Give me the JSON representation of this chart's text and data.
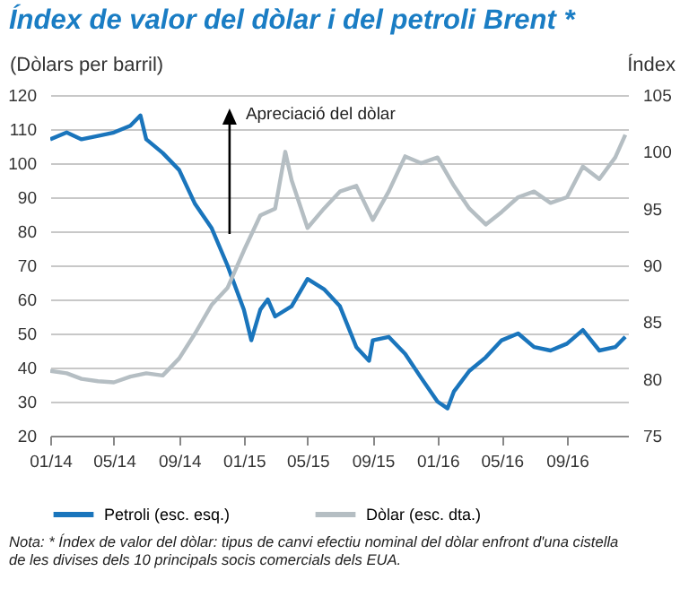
{
  "chart_data": {
    "type": "line",
    "title": "Índex de valor del dòlar i del petroli Brent *",
    "ylabel": "(Dòlars per barril)",
    "y2label": "Índex",
    "annotations": [
      {
        "text": "Apreciació del dòlar",
        "x": "2014-12-05",
        "y": 115
      },
      "Nota: * Índex de valor del dòlar: tipus de canvi efectiu nominal del dòlar enfront d'una cistella de les divises dels 10 principals socis comercials dels EUA."
    ],
    "xlim": [
      "2014-01-01",
      "2016-12-25"
    ],
    "xticks": [
      {
        "value": "2014-01-01",
        "label": "01/14"
      },
      {
        "value": "2014-05-01",
        "label": "05/14"
      },
      {
        "value": "2014-09-01",
        "label": "09/14"
      },
      {
        "value": "2015-01-01",
        "label": "01/15"
      },
      {
        "value": "2015-05-01",
        "label": "05/15"
      },
      {
        "value": "2015-09-01",
        "label": "09/15"
      },
      {
        "value": "2016-01-01",
        "label": "01/16"
      },
      {
        "value": "2016-05-01",
        "label": "05/16"
      },
      {
        "value": "2016-09-01",
        "label": "09/16"
      }
    ],
    "ylim": [
      20,
      120
    ],
    "yticks": [
      20,
      30,
      40,
      50,
      60,
      70,
      80,
      90,
      100,
      110,
      120
    ],
    "y2lim": [
      75,
      105
    ],
    "y2ticks": [
      75,
      80,
      85,
      90,
      95,
      100,
      105
    ],
    "grid": "y",
    "legend": "bottom",
    "series": [
      {
        "name": "Petroli (esc. esq.)",
        "color": "#1a75bc",
        "x": [
          "2014-01-01",
          "2014-02-01",
          "2014-03-01",
          "2014-04-01",
          "2014-05-01",
          "2014-06-01",
          "2014-06-20",
          "2014-07-01",
          "2014-08-01",
          "2014-09-01",
          "2014-10-01",
          "2014-11-01",
          "2014-12-01",
          "2015-01-01",
          "2015-01-15",
          "2015-02-01",
          "2015-02-15",
          "2015-03-01",
          "2015-04-01",
          "2015-05-01",
          "2015-06-01",
          "2015-07-01",
          "2015-08-01",
          "2015-08-25",
          "2015-09-01",
          "2015-10-01",
          "2015-11-01",
          "2015-12-01",
          "2016-01-01",
          "2016-01-20",
          "2016-02-01",
          "2016-03-01",
          "2016-04-01",
          "2016-05-01",
          "2016-06-01",
          "2016-07-01",
          "2016-08-01",
          "2016-09-01",
          "2016-10-01",
          "2016-11-01",
          "2016-12-01",
          "2016-12-20"
        ],
        "values": [
          107,
          109,
          107,
          108,
          109,
          111,
          114,
          107,
          103,
          98,
          88,
          81,
          70,
          57,
          48,
          57,
          60,
          55,
          58,
          66,
          63,
          58,
          46,
          42,
          48,
          49,
          44,
          37,
          30,
          28,
          33,
          39,
          43,
          48,
          50,
          46,
          45,
          47,
          51,
          45,
          46,
          49
        ]
      },
      {
        "name": "Dòlar (esc. dta.)",
        "color": "#b5bec3",
        "axis": "y2",
        "x": [
          "2014-01-01",
          "2014-02-01",
          "2014-03-01",
          "2014-04-01",
          "2014-05-01",
          "2014-06-01",
          "2014-07-01",
          "2014-08-01",
          "2014-09-01",
          "2014-10-01",
          "2014-11-01",
          "2014-12-01",
          "2015-01-01",
          "2015-02-01",
          "2015-03-01",
          "2015-03-20",
          "2015-04-01",
          "2015-05-01",
          "2015-06-01",
          "2015-07-01",
          "2015-08-01",
          "2015-09-01",
          "2015-10-01",
          "2015-11-01",
          "2015-12-01",
          "2016-01-01",
          "2016-02-01",
          "2016-03-01",
          "2016-04-01",
          "2016-05-01",
          "2016-06-01",
          "2016-07-01",
          "2016-08-01",
          "2016-09-01",
          "2016-10-01",
          "2016-11-01",
          "2016-12-01",
          "2016-12-20"
        ],
        "values": [
          80.7,
          80.5,
          80,
          79.8,
          79.7,
          80.2,
          80.5,
          80.3,
          81.8,
          84,
          86.5,
          88,
          91.3,
          94.4,
          95,
          100,
          97.5,
          93.3,
          95,
          96.5,
          97,
          94,
          96.5,
          99.6,
          99,
          99.5,
          97,
          95,
          93.6,
          94.7,
          96,
          96.5,
          95.5,
          96,
          98.7,
          97.6,
          99.5,
          101.5
        ]
      }
    ]
  }
}
